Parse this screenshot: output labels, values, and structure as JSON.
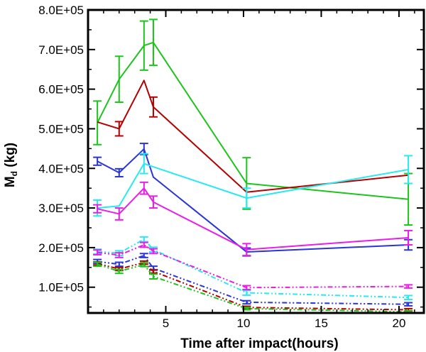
{
  "chart_data": {
    "type": "line",
    "title": "",
    "xlabel": "Time after impact(hours)",
    "ylabel_main": "M",
    "ylabel_sub": "d",
    "ylabel_units": " (kg)",
    "xlim": [
      0,
      21.6
    ],
    "ylim": [
      35000,
      800000
    ],
    "x_ticks": [
      5,
      10,
      15,
      20
    ],
    "x_tick_labels": [
      "5",
      "10",
      "15",
      "20"
    ],
    "y_ticks": [
      100000,
      200000,
      300000,
      400000,
      500000,
      600000,
      700000,
      800000
    ],
    "y_tick_labels": [
      "1.0E+05",
      "2.0E+05",
      "3.0E+05",
      "4.0E+05",
      "5.0E+05",
      "6.0E+05",
      "7.0E+05",
      "8.0E+05"
    ],
    "x": [
      0.6,
      2.0,
      3.6,
      4.2,
      10.2,
      20.6
    ],
    "series": [
      {
        "name": "green solid",
        "color": "#1cc41c",
        "dash": "solid",
        "values": [
          515000,
          625000,
          710000,
          718000,
          362000,
          322000
        ],
        "errors": [
          55000,
          58000,
          62000,
          58000,
          65000,
          65000
        ]
      },
      {
        "name": "red solid",
        "color": "#b50000",
        "dash": "solid",
        "values": [
          517000,
          500000,
          622000,
          555000,
          340000,
          383000
        ],
        "errors": [
          0,
          18000,
          0,
          25000,
          0,
          0
        ]
      },
      {
        "name": "blue solid",
        "color": "#2a35d6",
        "dash": "solid",
        "values": [
          418000,
          389000,
          449000,
          378000,
          189000,
          207000
        ],
        "errors": [
          10000,
          10000,
          14000,
          0,
          10000,
          13000
        ]
      },
      {
        "name": "cyan solid",
        "color": "#26eaf0",
        "dash": "solid",
        "values": [
          300000,
          305000,
          412000,
          404000,
          325000,
          397000
        ],
        "errors": [
          20000,
          0,
          25000,
          0,
          25000,
          35000
        ]
      },
      {
        "name": "magenta solid",
        "color": "#ea1de8",
        "dash": "solid",
        "values": [
          298000,
          285000,
          350000,
          315000,
          195000,
          225000
        ],
        "errors": [
          10000,
          15000,
          15000,
          15000,
          15000,
          18000
        ]
      },
      {
        "name": "cyan dashed",
        "color": "#26eaf0",
        "dash": "dashed",
        "values": [
          190000,
          186000,
          221000,
          195000,
          86000,
          74000
        ],
        "errors": [
          6000,
          6000,
          6000,
          6000,
          6000,
          5000
        ]
      },
      {
        "name": "magenta dashed",
        "color": "#ea1de8",
        "dash": "dashed",
        "values": [
          188000,
          181000,
          207000,
          191000,
          99000,
          102000
        ],
        "errors": [
          6000,
          6000,
          6000,
          6000,
          5000,
          4000
        ]
      },
      {
        "name": "blue dashed",
        "color": "#2a35d6",
        "dash": "dashed",
        "values": [
          165000,
          158000,
          180000,
          148000,
          62000,
          57000
        ],
        "errors": [
          5000,
          5000,
          5000,
          5000,
          4000,
          4000
        ]
      },
      {
        "name": "red dashed",
        "color": "#b50000",
        "dash": "dashed",
        "values": [
          160000,
          146000,
          162000,
          140000,
          49000,
          43000
        ],
        "errors": [
          4000,
          4000,
          4000,
          4000,
          3000,
          3000
        ]
      },
      {
        "name": "green dashed",
        "color": "#1cc41c",
        "dash": "dashed",
        "values": [
          158000,
          140000,
          157000,
          127000,
          46000,
          38000
        ],
        "errors": [
          5000,
          5000,
          5000,
          6000,
          3000,
          3000
        ]
      }
    ]
  }
}
